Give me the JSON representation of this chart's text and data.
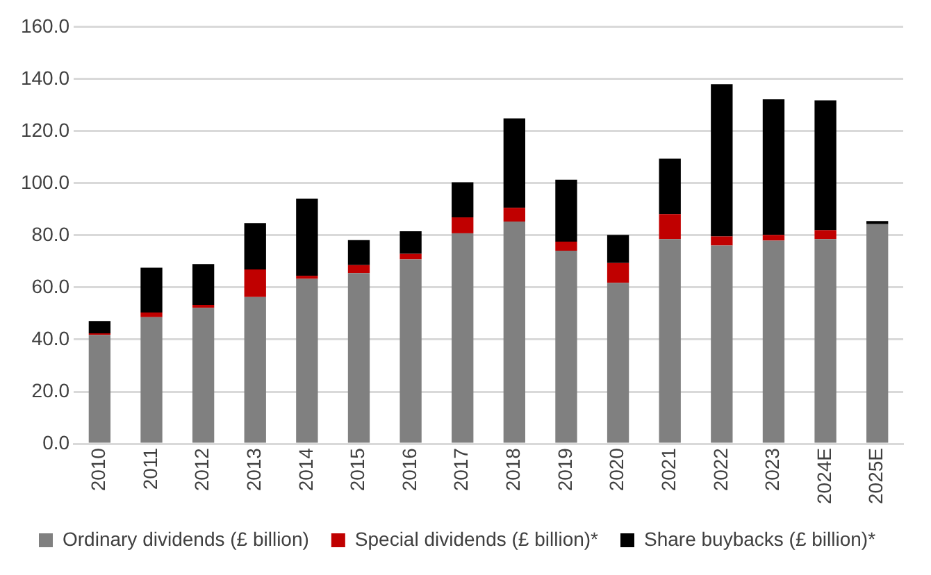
{
  "chart_data": {
    "type": "bar",
    "stacked": true,
    "categories": [
      "2010",
      "2011",
      "2012",
      "2013",
      "2014",
      "2015",
      "2016",
      "2017",
      "2018",
      "2019",
      "2020",
      "2021",
      "2022",
      "2023",
      "2024E",
      "2025E"
    ],
    "series": [
      {
        "name": "Ordinary dividends (£ billion)",
        "color": "#808080",
        "values": [
          41.8,
          48.6,
          52.2,
          56.3,
          63.3,
          65.5,
          70.8,
          80.8,
          85.3,
          74.1,
          61.8,
          78.6,
          76.1,
          78.0,
          78.6,
          84.3
        ]
      },
      {
        "name": "Special dividends (£ billion)*",
        "color": "#c00000",
        "values": [
          0.6,
          1.8,
          1.1,
          10.6,
          1.2,
          3.1,
          2.1,
          6.1,
          5.3,
          3.5,
          7.6,
          9.6,
          3.5,
          2.2,
          3.4,
          0
        ]
      },
      {
        "name": "Share buybacks (£ billion)*",
        "color": "#000000",
        "values": [
          4.7,
          17.2,
          15.7,
          17.8,
          29.6,
          9.6,
          8.7,
          13.5,
          34.3,
          23.8,
          10.8,
          21.2,
          58.4,
          52.0,
          49.8,
          1.2
        ]
      }
    ],
    "ylim": [
      0,
      160
    ],
    "yticks": [
      {
        "value": 0,
        "label": "0.0"
      },
      {
        "value": 20,
        "label": "20.0"
      },
      {
        "value": 40,
        "label": "40.0"
      },
      {
        "value": 60,
        "label": "60.0"
      },
      {
        "value": 80,
        "label": "80.0"
      },
      {
        "value": 100,
        "label": "100.0"
      },
      {
        "value": 120,
        "label": "120.0"
      },
      {
        "value": 140,
        "label": "140.0"
      },
      {
        "value": 160,
        "label": "160.0"
      }
    ],
    "grid": "y",
    "legend": "bottom"
  }
}
